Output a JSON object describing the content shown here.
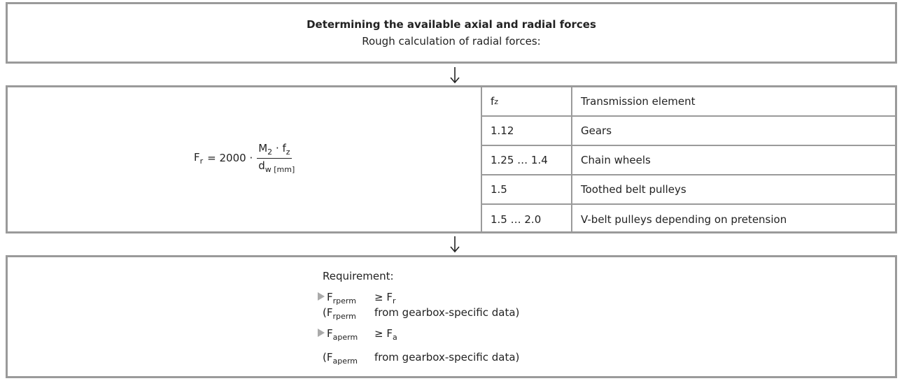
{
  "header": {
    "title": "Determining the available axial and radial forces",
    "subtitle": "Rough calculation of radial forces:"
  },
  "formula": {
    "lhs": "F",
    "lhs_sub": "r",
    "factor": "= 2000 ·",
    "num_m": "M",
    "num_m_sub": "2",
    "num_f": "· f",
    "num_f_sub": "z",
    "den_d": "d",
    "den_sub": "w [mm]"
  },
  "table": {
    "header": {
      "symbol": "f",
      "symbol_sub": "z",
      "label": "Transmission element"
    },
    "rows": [
      [
        "1.12",
        "Gears"
      ],
      [
        "1.25 … 1.4",
        "Chain wheels"
      ],
      [
        "1.5",
        "Toothed belt pulleys"
      ],
      [
        "1.5 … 2.0",
        "V-belt pulleys depending on pretension"
      ]
    ]
  },
  "requirement": {
    "title": "Requirement:",
    "items": [
      {
        "sym": "F",
        "sub": "rperm",
        "rel": "≥ F",
        "rel_sub": "r",
        "note_open": "(F",
        "note_sub": "rperm",
        "note": "from gearbox-specific data)"
      },
      {
        "sym": "F",
        "sub": "aperm",
        "rel": "≥ F",
        "rel_sub": "a",
        "note_open": "(F",
        "note_sub": "aperm",
        "note": "from gearbox-specific data)"
      }
    ]
  }
}
